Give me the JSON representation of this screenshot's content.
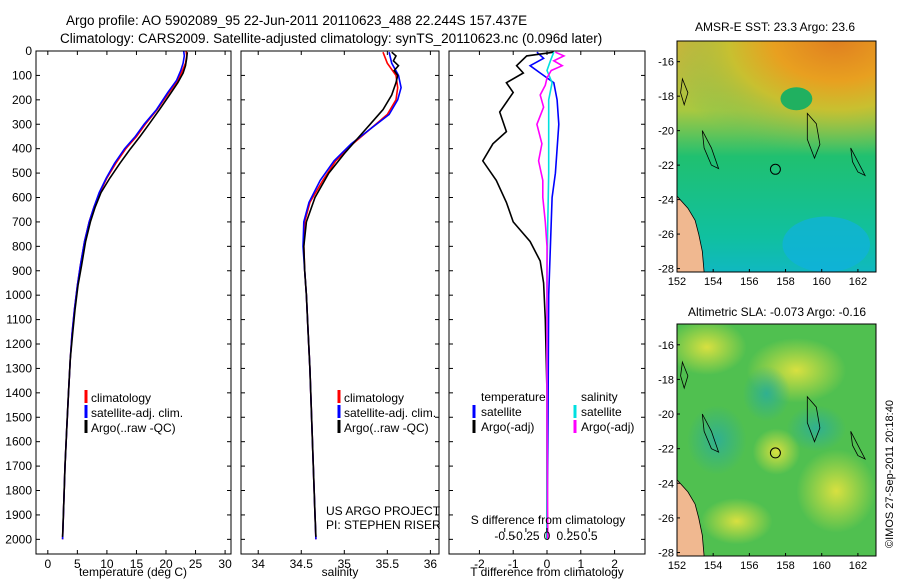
{
  "header": {
    "title_line1": "Argo profile: AO 5902089_95 22-Jun-2011 20110623_488 22.244S 157.437E",
    "title_line2": "Climatology: CARS2009. Satellite-adjusted climatology: synTS_20110623.nc (0.096d later)"
  },
  "credit": {
    "project": "US ARGO PROJECT",
    "pi": "PI: STEPHEN RISER",
    "imos": "©IMOS 27-Sep-2011 20:18:40"
  },
  "colors": {
    "climatology": "#ff0000",
    "satellite": "#0000ff",
    "argo": "#000000",
    "sat_diff": "#00e0e0",
    "argo_sal_diff": "#ff00ff"
  },
  "chart_data": [
    {
      "id": "temperature",
      "type": "line",
      "xlabel": "temperature (deg C)",
      "xlim": [
        -2,
        31
      ],
      "xticks": [
        0,
        5,
        10,
        15,
        20,
        25,
        30
      ],
      "xtick_labels": [
        "0",
        "5",
        "10",
        "15",
        "20",
        "25",
        "30"
      ],
      "ylim": [
        0,
        2060
      ],
      "yticks": [
        0,
        100,
        200,
        300,
        400,
        500,
        600,
        700,
        800,
        900,
        1000,
        1100,
        1200,
        1300,
        1400,
        1500,
        1600,
        1700,
        1800,
        1900,
        2000
      ],
      "ytick_labels": [
        "0",
        "100",
        "200",
        "300",
        "400",
        "500",
        "600",
        "700",
        "800",
        "900",
        "1000",
        "1100",
        "1200",
        "1300",
        "1400",
        "1500",
        "1600",
        "1700",
        "1800",
        "1900",
        "2000"
      ],
      "legend": [
        "climatology",
        "satellite-adj. clim.",
        "Argo(..raw -QC)"
      ],
      "series": [
        {
          "name": "climatology",
          "color": "#ff0000",
          "points": [
            [
              23.4,
              0
            ],
            [
              23.5,
              20
            ],
            [
              23.3,
              50
            ],
            [
              22.8,
              80
            ],
            [
              22.0,
              120
            ],
            [
              20.5,
              170
            ],
            [
              18.5,
              240
            ],
            [
              16.5,
              300
            ],
            [
              15.0,
              350
            ],
            [
              13.2,
              400
            ],
            [
              11.5,
              460
            ],
            [
              10.0,
              520
            ],
            [
              8.8,
              580
            ],
            [
              7.8,
              640
            ],
            [
              7.0,
              700
            ],
            [
              6.2,
              780
            ],
            [
              5.5,
              880
            ],
            [
              5.0,
              960
            ],
            [
              4.5,
              1060
            ],
            [
              4.1,
              1160
            ],
            [
              3.8,
              1260
            ],
            [
              3.5,
              1400
            ],
            [
              3.2,
              1550
            ],
            [
              2.9,
              1700
            ],
            [
              2.7,
              1850
            ],
            [
              2.5,
              2000
            ]
          ]
        },
        {
          "name": "satellite-adj. clim.",
          "color": "#0000ff",
          "points": [
            [
              23.0,
              0
            ],
            [
              23.1,
              20
            ],
            [
              22.9,
              50
            ],
            [
              22.5,
              80
            ],
            [
              21.8,
              120
            ],
            [
              20.3,
              170
            ],
            [
              18.4,
              240
            ],
            [
              16.3,
              300
            ],
            [
              14.8,
              350
            ],
            [
              13.0,
              400
            ],
            [
              11.3,
              460
            ],
            [
              9.9,
              520
            ],
            [
              8.7,
              580
            ],
            [
              7.8,
              640
            ],
            [
              7.0,
              700
            ],
            [
              6.2,
              780
            ],
            [
              5.5,
              880
            ],
            [
              5.0,
              960
            ],
            [
              4.5,
              1060
            ],
            [
              4.1,
              1160
            ],
            [
              3.8,
              1260
            ],
            [
              3.5,
              1400
            ],
            [
              3.2,
              1550
            ],
            [
              2.9,
              1700
            ],
            [
              2.7,
              1850
            ],
            [
              2.5,
              2000
            ]
          ]
        },
        {
          "name": "Argo(..raw -QC)",
          "color": "#000000",
          "points": [
            [
              23.6,
              5
            ],
            [
              23.5,
              30
            ],
            [
              23.3,
              60
            ],
            [
              22.9,
              90
            ],
            [
              22.0,
              130
            ],
            [
              20.6,
              180
            ],
            [
              18.9,
              240
            ],
            [
              17.1,
              300
            ],
            [
              15.6,
              350
            ],
            [
              14.0,
              400
            ],
            [
              12.2,
              460
            ],
            [
              10.5,
              520
            ],
            [
              9.0,
              580
            ],
            [
              8.0,
              640
            ],
            [
              7.2,
              700
            ],
            [
              6.4,
              780
            ],
            [
              5.7,
              880
            ],
            [
              5.1,
              960
            ],
            [
              4.6,
              1060
            ],
            [
              4.2,
              1160
            ],
            [
              3.8,
              1260
            ],
            [
              3.5,
              1400
            ],
            [
              3.2,
              1550
            ],
            [
              2.9,
              1700
            ],
            [
              2.7,
              1850
            ],
            [
              2.5,
              1990
            ]
          ]
        }
      ]
    },
    {
      "id": "salinity",
      "type": "line",
      "xlabel": "salinity",
      "xlim": [
        33.8,
        36.1
      ],
      "xticks": [
        34,
        34.5,
        35,
        35.5,
        36
      ],
      "xtick_labels": [
        "34",
        "34.5",
        "35",
        "35.5",
        "36"
      ],
      "ylim": [
        0,
        2060
      ],
      "legend": [
        "climatology",
        "satellite-adj. clim.",
        "Argo(..raw -QC)"
      ],
      "series": [
        {
          "name": "climatology",
          "color": "#ff0000",
          "points": [
            [
              35.45,
              5
            ],
            [
              35.5,
              50
            ],
            [
              35.6,
              100
            ],
            [
              35.62,
              150
            ],
            [
              35.6,
              200
            ],
            [
              35.5,
              260
            ],
            [
              35.3,
              320
            ],
            [
              35.1,
              380
            ],
            [
              34.9,
              450
            ],
            [
              34.75,
              530
            ],
            [
              34.6,
              620
            ],
            [
              34.54,
              700
            ],
            [
              34.53,
              800
            ],
            [
              34.54,
              900
            ],
            [
              34.56,
              1000
            ],
            [
              34.58,
              1150
            ],
            [
              34.6,
              1300
            ],
            [
              34.62,
              1500
            ],
            [
              34.64,
              1700
            ],
            [
              34.66,
              1900
            ],
            [
              34.67,
              2000
            ]
          ]
        },
        {
          "name": "satellite-adj. clim.",
          "color": "#0000ff",
          "points": [
            [
              35.52,
              5
            ],
            [
              35.55,
              50
            ],
            [
              35.63,
              100
            ],
            [
              35.66,
              150
            ],
            [
              35.62,
              200
            ],
            [
              35.52,
              260
            ],
            [
              35.3,
              320
            ],
            [
              35.08,
              380
            ],
            [
              34.88,
              450
            ],
            [
              34.72,
              530
            ],
            [
              34.59,
              620
            ],
            [
              34.53,
              700
            ],
            [
              34.52,
              800
            ],
            [
              34.54,
              900
            ],
            [
              34.56,
              1000
            ],
            [
              34.58,
              1150
            ],
            [
              34.6,
              1300
            ],
            [
              34.62,
              1500
            ],
            [
              34.64,
              1700
            ],
            [
              34.66,
              1900
            ],
            [
              34.67,
              2000
            ]
          ]
        },
        {
          "name": "Argo(..raw -QC)",
          "color": "#000000",
          "points": [
            [
              35.55,
              5
            ],
            [
              35.6,
              20
            ],
            [
              35.57,
              40
            ],
            [
              35.63,
              60
            ],
            [
              35.58,
              80
            ],
            [
              35.62,
              100
            ],
            [
              35.6,
              130
            ],
            [
              35.55,
              180
            ],
            [
              35.45,
              240
            ],
            [
              35.3,
              300
            ],
            [
              35.15,
              360
            ],
            [
              35.0,
              420
            ],
            [
              34.82,
              500
            ],
            [
              34.66,
              600
            ],
            [
              34.56,
              700
            ],
            [
              34.53,
              800
            ],
            [
              34.54,
              900
            ],
            [
              34.56,
              1000
            ],
            [
              34.58,
              1150
            ],
            [
              34.6,
              1300
            ],
            [
              34.62,
              1500
            ],
            [
              34.64,
              1700
            ],
            [
              34.66,
              1900
            ],
            [
              34.67,
              1990
            ]
          ]
        }
      ]
    },
    {
      "id": "difference",
      "type": "line",
      "xlabel": "T difference from climatology",
      "xlim": [
        -2.9,
        2.9
      ],
      "xticks": [
        -2,
        -1,
        0,
        1,
        2
      ],
      "xtick_labels": [
        "-2",
        "-1",
        "0",
        "1",
        "2"
      ],
      "xlabel_top": "S difference from climatology",
      "sticks": [
        -0.5,
        -0.25,
        0,
        0.25,
        0.5
      ],
      "stick_labels": [
        "-0.5",
        "-0.25",
        "0",
        "0.25",
        "0.5"
      ],
      "ylim": [
        0,
        2060
      ],
      "legend_left_title": "temperature",
      "legend_right_title": "salinity",
      "legend": [
        "satellite",
        "Argo(-adj)",
        "satellite",
        "Argo(-adj)"
      ],
      "series": [
        {
          "name": "T satellite",
          "color": "#0000ff",
          "points": [
            [
              -0.3,
              5
            ],
            [
              -0.1,
              30
            ],
            [
              -0.5,
              60
            ],
            [
              -0.2,
              90
            ],
            [
              0.2,
              130
            ],
            [
              0.3,
              200
            ],
            [
              0.35,
              300
            ],
            [
              0.3,
              400
            ],
            [
              0.25,
              500
            ],
            [
              0.15,
              600
            ],
            [
              0.1,
              800
            ],
            [
              0.05,
              1000
            ],
            [
              0.03,
              1500
            ],
            [
              0.0,
              2000
            ]
          ]
        },
        {
          "name": "T Argo(-adj)",
          "color": "#000000",
          "points": [
            [
              0.2,
              5
            ],
            [
              -0.6,
              20
            ],
            [
              -0.9,
              60
            ],
            [
              -0.7,
              90
            ],
            [
              -1.2,
              130
            ],
            [
              -1.0,
              170
            ],
            [
              -1.4,
              250
            ],
            [
              -1.2,
              330
            ],
            [
              -1.6,
              380
            ],
            [
              -1.9,
              450
            ],
            [
              -1.5,
              530
            ],
            [
              -1.2,
              620
            ],
            [
              -1.0,
              700
            ],
            [
              -0.5,
              780
            ],
            [
              -0.2,
              860
            ],
            [
              -0.1,
              950
            ],
            [
              -0.05,
              1100
            ],
            [
              0.0,
              1400
            ],
            [
              0.0,
              2000
            ]
          ]
        },
        {
          "name": "S satellite",
          "color": "#00e0e0",
          "points": [
            [
              0.08,
              5
            ],
            [
              0.04,
              40
            ],
            [
              0.0,
              80
            ],
            [
              0.06,
              130
            ],
            [
              0.02,
              200
            ],
            [
              0.02,
              300
            ],
            [
              0.02,
              400
            ],
            [
              0.02,
              500
            ],
            [
              0.01,
              700
            ],
            [
              0.0,
              900
            ],
            [
              0.0,
              1200
            ],
            [
              0.0,
              1600
            ],
            [
              0.0,
              2000
            ]
          ]
        },
        {
          "name": "S Argo(-adj)",
          "color": "#ff00ff",
          "points": [
            [
              0.1,
              5
            ],
            [
              0.2,
              20
            ],
            [
              0.08,
              40
            ],
            [
              0.18,
              60
            ],
            [
              0.05,
              80
            ],
            [
              0.0,
              110
            ],
            [
              -0.02,
              140
            ],
            [
              -0.08,
              180
            ],
            [
              -0.04,
              230
            ],
            [
              -0.12,
              300
            ],
            [
              -0.06,
              380
            ],
            [
              -0.1,
              450
            ],
            [
              -0.05,
              530
            ],
            [
              -0.05,
              600
            ],
            [
              -0.02,
              700
            ],
            [
              0.0,
              800
            ],
            [
              0.0,
              1000
            ],
            [
              0.0,
              1500
            ],
            [
              0.01,
              2000
            ]
          ]
        }
      ]
    },
    {
      "id": "sst_map",
      "type": "heatmap",
      "title": "AMSR-E SST: 23.3 Argo: 23.6",
      "xlim": [
        152,
        163
      ],
      "xticks": [
        152,
        154,
        156,
        158,
        160,
        162
      ],
      "xtick_labels": [
        "152",
        "154",
        "156",
        "158",
        "160",
        "162"
      ],
      "ylim": [
        -28.2,
        -14.8
      ],
      "yticks": [
        -16,
        -18,
        -20,
        -22,
        -24,
        -26,
        -28
      ],
      "ytick_labels": [
        "-16",
        "-18",
        "-20",
        "-22",
        "-24",
        "-26",
        "-28"
      ],
      "float_position": [
        157.437,
        -22.244
      ]
    },
    {
      "id": "sla_map",
      "type": "heatmap",
      "title": "Altimetric SLA: -0.073 Argo: -0.16",
      "xlim": [
        152,
        163
      ],
      "xticks": [
        152,
        154,
        156,
        158,
        160,
        162
      ],
      "xtick_labels": [
        "152",
        "154",
        "156",
        "158",
        "160",
        "162"
      ],
      "ylim": [
        -28.2,
        -14.8
      ],
      "yticks": [
        -16,
        -18,
        -20,
        -22,
        -24,
        -26,
        -28
      ],
      "ytick_labels": [
        "-16",
        "-18",
        "-20",
        "-22",
        "-24",
        "-26",
        "-28"
      ],
      "float_position": [
        157.437,
        -22.244
      ]
    }
  ]
}
